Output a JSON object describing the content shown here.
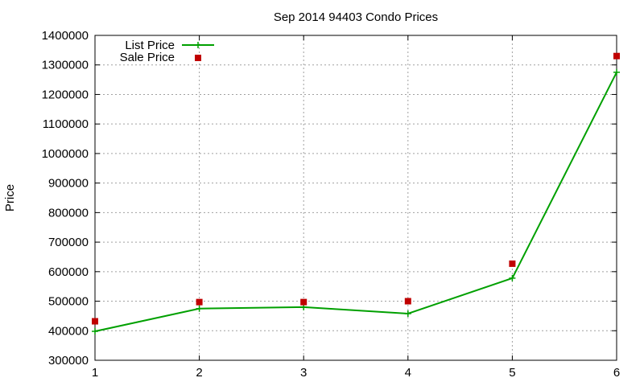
{
  "chart_data": {
    "type": "line",
    "title": "Sep 2014 94403 Condo Prices",
    "xlabel": "",
    "ylabel": "Price",
    "x": [
      1,
      2,
      3,
      4,
      5,
      6
    ],
    "xlim": [
      1,
      6
    ],
    "ylim": [
      300000,
      1400000
    ],
    "x_ticks": [
      "1",
      "2",
      "3",
      "4",
      "5",
      "6"
    ],
    "y_ticks": [
      "300000",
      "400000",
      "500000",
      "600000",
      "700000",
      "800000",
      "900000",
      "1000000",
      "1100000",
      "1200000",
      "1300000",
      "1400000"
    ],
    "grid": true,
    "legend_position": "top-left",
    "series": [
      {
        "name": "List Price",
        "style": "line-with-plus-markers",
        "color": "#00a000",
        "values": [
          398000,
          475000,
          480000,
          458000,
          578000,
          1275000
        ]
      },
      {
        "name": "Sale Price",
        "style": "square-markers",
        "color": "#c00000",
        "values": [
          432000,
          497000,
          497000,
          500000,
          627000,
          1330000
        ]
      }
    ]
  }
}
